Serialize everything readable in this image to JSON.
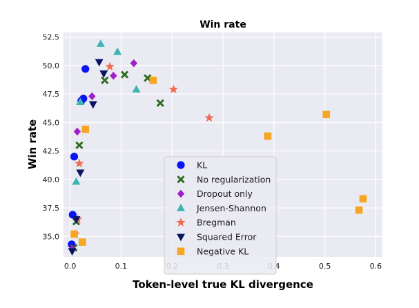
{
  "chart_data": {
    "type": "scatter",
    "title": "Win rate",
    "xlabel": "Token-level true KL divergence",
    "ylabel": "Win rate",
    "xlim": [
      -0.013,
      0.613
    ],
    "ylim": [
      33.2,
      52.9
    ],
    "xticks": [
      0.0,
      0.1,
      0.2,
      0.3,
      0.4,
      0.5,
      0.6
    ],
    "xtick_labels": [
      "0.0",
      "0.1",
      "0.2",
      "0.3",
      "0.4",
      "0.5",
      "0.6"
    ],
    "yticks": [
      35.0,
      37.5,
      40.0,
      42.5,
      45.0,
      47.5,
      50.0,
      52.5
    ],
    "ytick_labels": [
      "35.0",
      "37.5",
      "40.0",
      "42.5",
      "45.0",
      "47.5",
      "50.0",
      "52.5"
    ],
    "grid": true,
    "legend_position": "lower-center",
    "series": [
      {
        "name": "KL",
        "marker": "circle",
        "color": "#0a14f5",
        "points": [
          [
            0.03,
            49.7
          ],
          [
            0.026,
            47.1
          ],
          [
            0.022,
            46.9
          ],
          [
            0.008,
            42.0
          ],
          [
            0.005,
            36.9
          ],
          [
            0.003,
            34.3
          ]
        ]
      },
      {
        "name": "No regularization",
        "marker": "x",
        "color": "#2e6b1f",
        "points": [
          [
            0.107,
            49.2
          ],
          [
            0.152,
            48.9
          ],
          [
            0.068,
            48.7
          ],
          [
            0.177,
            46.7
          ],
          [
            0.018,
            43.0
          ],
          [
            0.012,
            36.3
          ],
          [
            0.007,
            34.0
          ]
        ]
      },
      {
        "name": "Dropout only",
        "marker": "diamond",
        "color": "#a020c8",
        "points": [
          [
            0.125,
            50.2
          ],
          [
            0.085,
            49.1
          ],
          [
            0.043,
            47.3
          ],
          [
            0.014,
            44.2
          ],
          [
            0.004,
            33.9
          ]
        ]
      },
      {
        "name": "Jensen-Shannon",
        "marker": "triangle-up",
        "color": "#3cb4b4",
        "points": [
          [
            0.06,
            51.9
          ],
          [
            0.093,
            51.2
          ],
          [
            0.13,
            47.9
          ],
          [
            0.02,
            46.8
          ],
          [
            0.012,
            39.8
          ]
        ]
      },
      {
        "name": "Bregman",
        "marker": "star",
        "color": "#ef6a4f",
        "points": [
          [
            0.078,
            49.9
          ],
          [
            0.203,
            47.9
          ],
          [
            0.273,
            45.4
          ],
          [
            0.018,
            41.4
          ],
          [
            0.015,
            36.5
          ],
          [
            0.01,
            35.2
          ]
        ]
      },
      {
        "name": "Squared Error",
        "marker": "triangle-down",
        "color": "#0b1463",
        "points": [
          [
            0.057,
            50.3
          ],
          [
            0.066,
            49.3
          ],
          [
            0.045,
            46.6
          ],
          [
            0.02,
            40.6
          ],
          [
            0.012,
            36.5
          ],
          [
            0.004,
            33.7
          ]
        ]
      },
      {
        "name": "Negative KL",
        "marker": "square",
        "color": "#f5a623",
        "points": [
          [
            0.163,
            48.7
          ],
          [
            0.503,
            45.7
          ],
          [
            0.388,
            43.8
          ],
          [
            0.03,
            44.4
          ],
          [
            0.575,
            38.3
          ],
          [
            0.567,
            37.3
          ],
          [
            0.008,
            35.2
          ],
          [
            0.024,
            34.5
          ]
        ]
      }
    ]
  }
}
